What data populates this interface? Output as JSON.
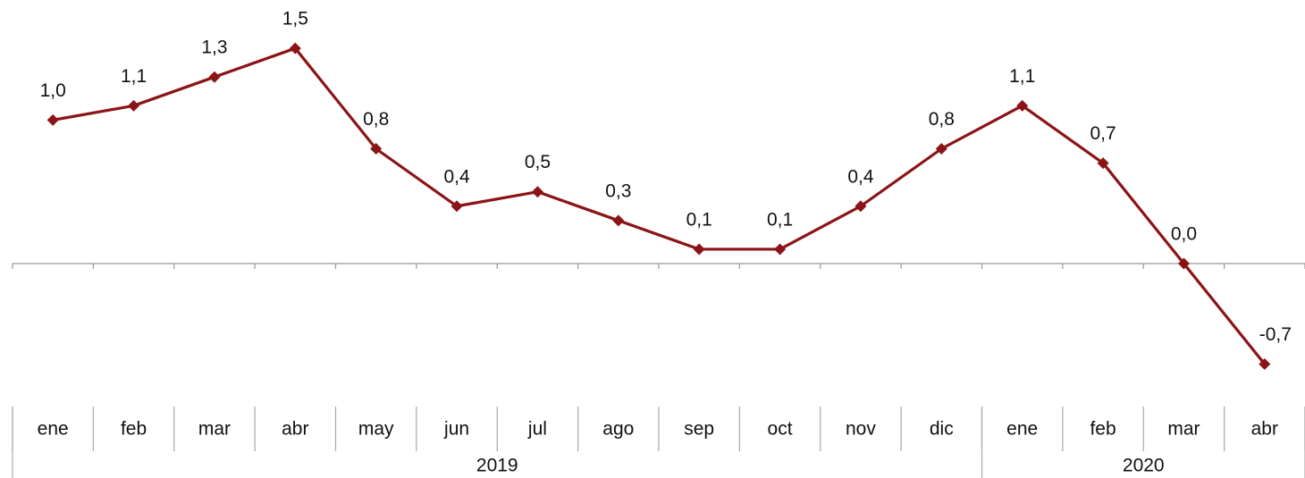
{
  "chart_data": {
    "type": "line",
    "categories": [
      "ene",
      "feb",
      "mar",
      "abr",
      "may",
      "jun",
      "jul",
      "ago",
      "sep",
      "oct",
      "nov",
      "dic",
      "ene",
      "feb",
      "mar",
      "abr"
    ],
    "year_groups": [
      {
        "label": "2019",
        "count": 12
      },
      {
        "label": "2020",
        "count": 4
      }
    ],
    "series": [
      {
        "color": "#8b1416",
        "values": [
          1.0,
          1.1,
          1.3,
          1.5,
          0.8,
          0.4,
          0.5,
          0.3,
          0.1,
          0.1,
          0.4,
          0.8,
          1.1,
          0.7,
          0.0,
          -0.7
        ],
        "value_labels": [
          "1,0",
          "1,1",
          "1,3",
          "1,5",
          "0,8",
          "0,4",
          "0,5",
          "0,3",
          "0,1",
          "0,1",
          "0,4",
          "0,8",
          "1,1",
          "0,7",
          "0,0",
          "-0,7"
        ]
      }
    ],
    "ylim": [
      -0.8,
      1.6
    ]
  }
}
